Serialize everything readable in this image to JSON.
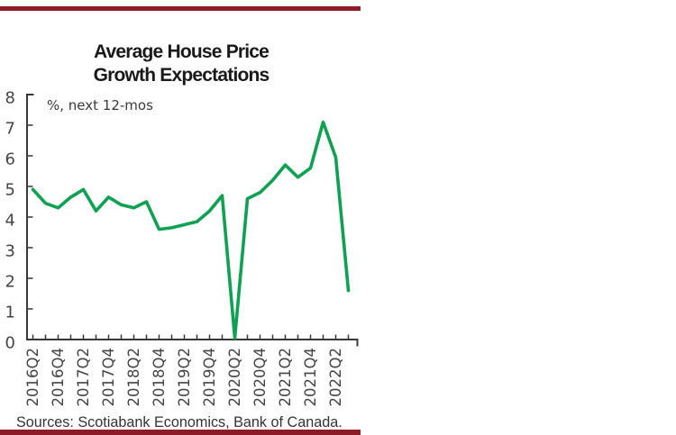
{
  "chart_data": {
    "type": "line",
    "title_line1": "Average House Price",
    "title_line2": "Growth Expectations",
    "annotation": "%, next 12-mos",
    "x": [
      "2016Q2",
      "2016Q3",
      "2016Q4",
      "2017Q1",
      "2017Q2",
      "2017Q3",
      "2017Q4",
      "2018Q1",
      "2018Q2",
      "2018Q3",
      "2018Q4",
      "2019Q1",
      "2019Q2",
      "2019Q3",
      "2019Q4",
      "2020Q1",
      "2020Q2",
      "2020Q3",
      "2020Q4",
      "2021Q1",
      "2021Q2",
      "2021Q3",
      "2021Q4",
      "2022Q1",
      "2022Q2",
      "2022Q3"
    ],
    "values": [
      4.9,
      4.45,
      4.3,
      4.65,
      4.9,
      4.2,
      4.65,
      4.4,
      4.3,
      4.5,
      3.6,
      3.65,
      3.75,
      3.85,
      4.2,
      4.7,
      0.05,
      4.6,
      4.8,
      5.2,
      5.7,
      5.3,
      5.6,
      7.1,
      5.95,
      1.6
    ],
    "x_tick_labels": [
      "2016Q2",
      "2016Q4",
      "2017Q2",
      "2017Q4",
      "2018Q2",
      "2018Q4",
      "2019Q2",
      "2019Q4",
      "2020Q2",
      "2020Q4",
      "2021Q2",
      "2021Q4",
      "2022Q2"
    ],
    "ylim": [
      0,
      8
    ],
    "y_ticks": [
      0,
      1,
      2,
      3,
      4,
      5,
      6,
      7,
      8
    ],
    "grid": "off",
    "legend": "none",
    "line_color": "#0EA152",
    "source": "Sources: Scotiabank Economics, Bank of Canada."
  },
  "accents": {
    "rule_color": "#8B1B26",
    "axis_color": "#383838",
    "tick_label_color": "#454545"
  }
}
